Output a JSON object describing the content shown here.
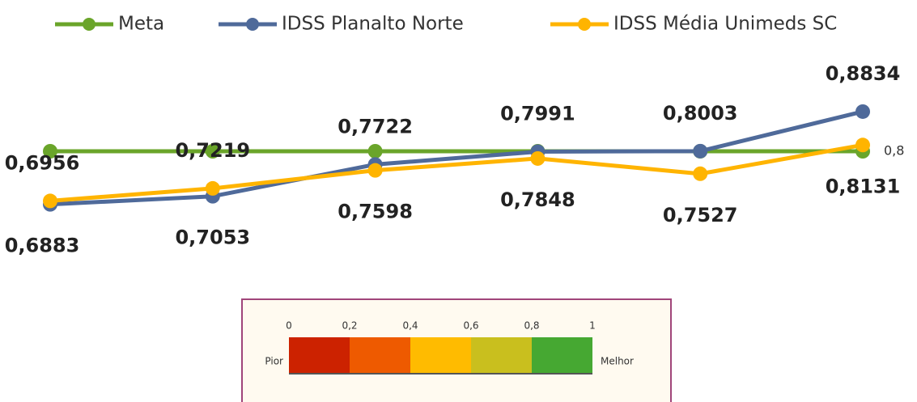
{
  "chart_data": {
    "type": "line",
    "series": [
      {
        "name": "Meta",
        "color": "#6aa52a",
        "values": [
          0.8,
          0.8,
          0.8,
          0.8,
          0.8,
          0.8
        ],
        "value_labels": [
          null,
          null,
          null,
          null,
          null,
          "0,8"
        ]
      },
      {
        "name": "IDSS Planalto Norte",
        "color": "#4f6a9a",
        "values": [
          0.6883,
          0.7053,
          0.7722,
          0.7991,
          0.8003,
          0.8834
        ],
        "value_labels": [
          "0,6883",
          "0,7053",
          "0,7722",
          "0,7991",
          "0,8003",
          "0,8834"
        ]
      },
      {
        "name": "IDSS Média Unimeds SC",
        "color": "#ffb400",
        "values": [
          0.6956,
          0.7219,
          0.7598,
          0.7848,
          0.7527,
          0.8131
        ],
        "value_labels": [
          "0,6956",
          "0,7219",
          "0,7598",
          "0,7848",
          "0,7527",
          "0,8131"
        ]
      }
    ],
    "ylim": [
      0.55,
      1.0
    ],
    "color_scale": {
      "ticks": [
        "0",
        "0,2",
        "0,4",
        "0,6",
        "0,8",
        "1"
      ],
      "colors": [
        "#cc2200",
        "#ee5a00",
        "#ffbb00",
        "#c9bf1e",
        "#46a832"
      ],
      "left_label": "Pior",
      "right_label": "Melhor"
    }
  }
}
